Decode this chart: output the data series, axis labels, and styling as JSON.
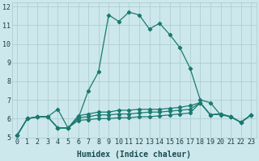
{
  "xlabel": "Humidex (Indice chaleur)",
  "background_color": "#cce8ec",
  "grid_color": "#b0cdd2",
  "line_color": "#1a7a70",
  "xlim": [
    -0.5,
    23.5
  ],
  "ylim": [
    5,
    12.2
  ],
  "xticks": [
    0,
    1,
    2,
    3,
    4,
    5,
    6,
    7,
    8,
    9,
    10,
    11,
    12,
    13,
    14,
    15,
    16,
    17,
    18,
    19,
    20,
    21,
    22,
    23
  ],
  "yticks": [
    5,
    6,
    7,
    8,
    9,
    10,
    11,
    12
  ],
  "series": [
    [
      5.1,
      6.0,
      6.1,
      6.1,
      6.5,
      5.5,
      6.0,
      7.5,
      8.5,
      11.55,
      11.2,
      11.7,
      11.55,
      10.8,
      11.1,
      10.5,
      9.8,
      8.7,
      7.0,
      6.85,
      6.2,
      6.1,
      5.8,
      6.2
    ],
    [
      5.1,
      6.0,
      6.1,
      6.1,
      5.5,
      5.5,
      6.15,
      6.25,
      6.35,
      6.35,
      6.45,
      6.45,
      6.5,
      6.5,
      6.5,
      6.55,
      6.6,
      6.7,
      6.85,
      6.2,
      6.25,
      6.1,
      5.8,
      6.2
    ],
    [
      5.1,
      6.0,
      6.1,
      6.1,
      5.5,
      5.5,
      6.05,
      6.1,
      6.2,
      6.2,
      6.25,
      6.25,
      6.3,
      6.35,
      6.35,
      6.4,
      6.45,
      6.5,
      6.85,
      6.2,
      6.25,
      6.1,
      5.8,
      6.2
    ],
    [
      5.1,
      6.0,
      6.1,
      6.1,
      5.5,
      5.5,
      5.9,
      5.95,
      6.0,
      6.0,
      6.05,
      6.05,
      6.1,
      6.1,
      6.15,
      6.2,
      6.25,
      6.3,
      6.85,
      6.2,
      6.25,
      6.1,
      5.8,
      6.2
    ]
  ],
  "xlabel_fontsize": 7,
  "tick_fontsize": 6,
  "linewidth": 0.9,
  "markersize": 2.2
}
